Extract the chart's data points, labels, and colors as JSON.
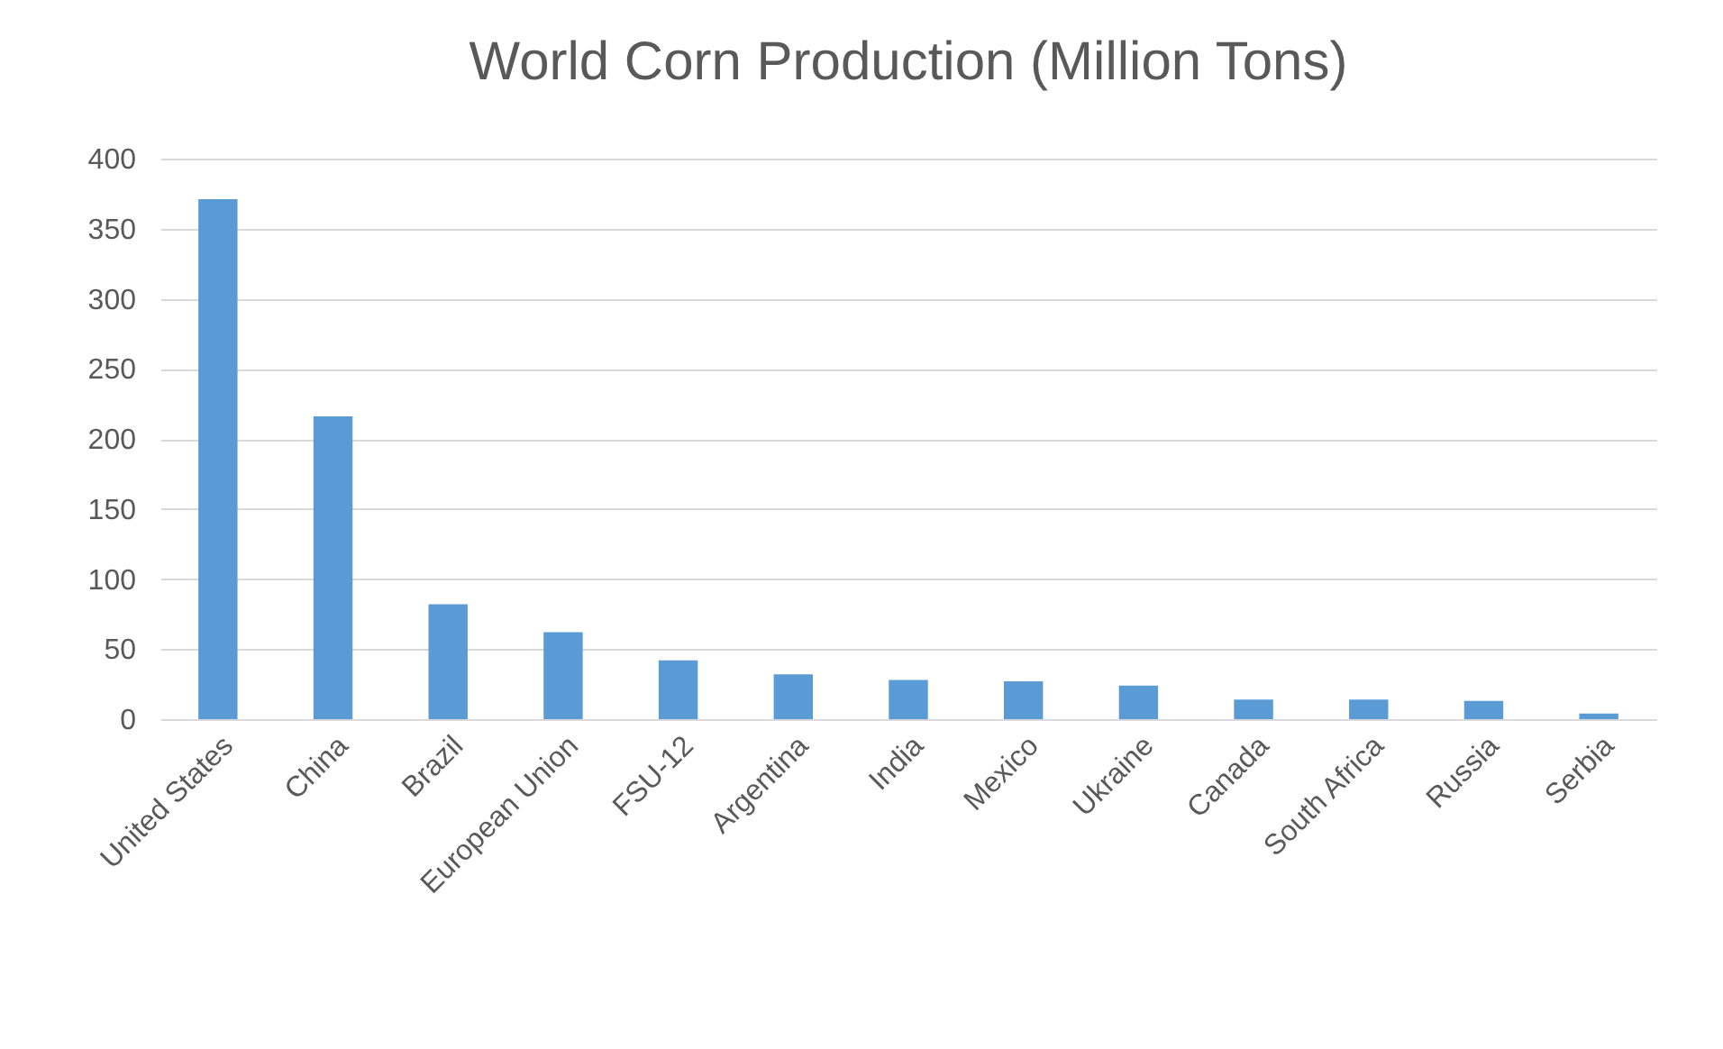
{
  "chart_data": {
    "type": "bar",
    "title": "World Corn Production (Million Tons)",
    "categories": [
      "United States",
      "China",
      "Brazil",
      "European Union",
      "FSU-12",
      "Argentina",
      "India",
      "Mexico",
      "Ukraine",
      "Canada",
      "South Africa",
      "Russia",
      "Serbia"
    ],
    "values": [
      371,
      216,
      82,
      62,
      42,
      32,
      28,
      27,
      24,
      14,
      14,
      13,
      4
    ],
    "color": "#5b9bd5",
    "ylim": [
      0,
      400
    ],
    "yticks": [
      0,
      50,
      100,
      150,
      200,
      250,
      300,
      350,
      400
    ],
    "grid": "y"
  }
}
